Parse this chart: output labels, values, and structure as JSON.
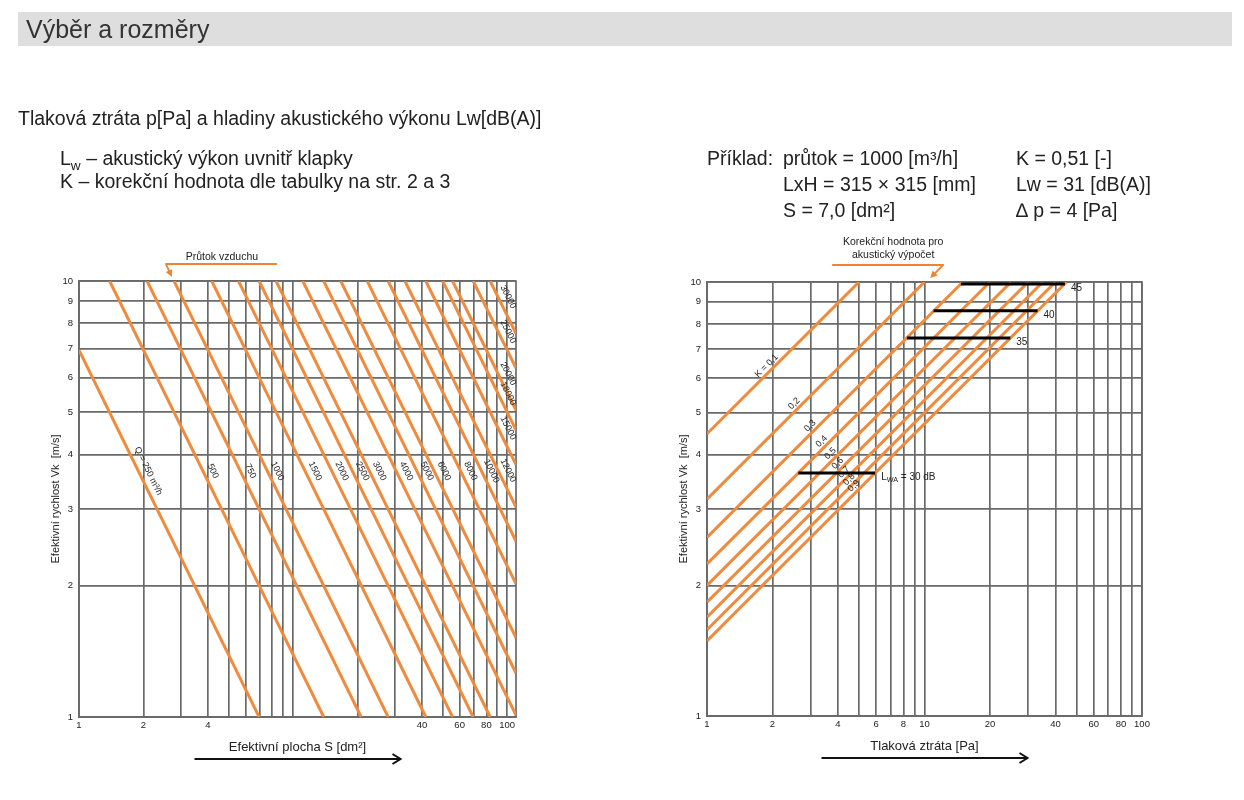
{
  "chart_data": [
    {
      "type": "other",
      "title": "Výběr a rozměry",
      "subtitle": "Tlaková ztráta p[Pa] a hladiny akustického výkonu Lw[dB(A)]",
      "annotations": [
        "L$_{w}$ – akustický výkon uvnitř klapky",
        "K – korekční hodnota dle tabulky na str. 2 a 3",
        "Příklad:",
        "průtok = 1000 [m³/h]",
        "LxH = 315 × 315 [mm]",
        "S = 7,0 [dm²]",
        "K = 0,51 [-]",
        "Lw = 31 [dB(A)]",
        "∆ p = 4 [Pa]"
      ]
    },
    {
      "type": "line",
      "xlabel": "Efektivní plocha S [dm²]",
      "ylabel": "Efektivní rychlost Vk  [m/s]",
      "annotations": [
        "Průtok vzduchu"
      ],
      "log": "xy",
      "grid": true,
      "marker": "none",
      "xlim": [
        1,
        110
      ],
      "ylim": [
        1,
        10
      ],
      "xticks": [
        1,
        2,
        {
          "value": 3,
          "label": null
        },
        4,
        {
          "value": 5,
          "label": null
        },
        {
          "value": 6,
          "label": null
        },
        {
          "value": 7,
          "label": null
        },
        {
          "value": 8,
          "label": null
        },
        {
          "value": 9,
          "label": null
        },
        {
          "value": 10,
          "label": null
        },
        {
          "value": 20,
          "label": null
        },
        {
          "value": 30,
          "label": null
        },
        40,
        {
          "value": 50,
          "label": null
        },
        60,
        {
          "value": 70,
          "label": null
        },
        80,
        {
          "value": 90,
          "label": null
        },
        100
      ],
      "yticks": [
        1,
        2,
        3,
        4,
        5,
        6,
        7,
        8,
        9,
        10
      ],
      "series": [
        {
          "name": "Q = 250 m³/h",
          "color": "#f08a3c",
          "x": [
            1,
            6.94
          ],
          "values": [
            6.94,
            1
          ]
        },
        {
          "name": "500",
          "color": "#f08a3c",
          "x": [
            1.39,
            13.9
          ],
          "values": [
            10,
            1
          ]
        },
        {
          "name": "750",
          "color": "#f08a3c",
          "x": [
            2.08,
            20.8
          ],
          "values": [
            10,
            1
          ]
        },
        {
          "name": "1000",
          "color": "#f08a3c",
          "x": [
            2.78,
            27.8
          ],
          "values": [
            10,
            1
          ]
        },
        {
          "name": "1500",
          "color": "#f08a3c",
          "x": [
            4.17,
            41.7
          ],
          "values": [
            10,
            1
          ]
        },
        {
          "name": "2000",
          "color": "#f08a3c",
          "x": [
            5.56,
            55.6
          ],
          "values": [
            10,
            1
          ]
        },
        {
          "name": "2500",
          "color": "#f08a3c",
          "x": [
            6.94,
            69.4
          ],
          "values": [
            10,
            1
          ]
        },
        {
          "name": "3000",
          "color": "#f08a3c",
          "x": [
            8.33,
            83.3
          ],
          "values": [
            10,
            1
          ]
        },
        {
          "name": "4000",
          "color": "#f08a3c",
          "x": [
            11.1,
            110
          ],
          "values": [
            10,
            1.01
          ]
        },
        {
          "name": "5000",
          "color": "#f08a3c",
          "x": [
            13.9,
            110
          ],
          "values": [
            10,
            1.26
          ]
        },
        {
          "name": "6000",
          "color": "#f08a3c",
          "x": [
            16.7,
            110
          ],
          "values": [
            10,
            1.52
          ]
        },
        {
          "name": "8000",
          "color": "#f08a3c",
          "x": [
            22.2,
            110
          ],
          "values": [
            10,
            2.02
          ]
        },
        {
          "name": "10000",
          "color": "#f08a3c",
          "x": [
            27.8,
            110
          ],
          "values": [
            10,
            2.53
          ]
        },
        {
          "name": "12000",
          "color": "#f08a3c",
          "x": [
            33.3,
            110
          ],
          "values": [
            10,
            3.03
          ]
        },
        {
          "name": "15000",
          "color": "#f08a3c",
          "x": [
            41.7,
            110
          ],
          "values": [
            10,
            3.79
          ]
        },
        {
          "name": "18000",
          "color": "#f08a3c",
          "x": [
            50,
            110
          ],
          "values": [
            10,
            4.55
          ]
        },
        {
          "name": "20000",
          "color": "#f08a3c",
          "x": [
            55.6,
            110
          ],
          "values": [
            10,
            5.05
          ]
        },
        {
          "name": "25000",
          "color": "#f08a3c",
          "x": [
            69.4,
            110
          ],
          "values": [
            10,
            6.31
          ]
        },
        {
          "name": "30000",
          "color": "#f08a3c",
          "x": [
            83.3,
            110
          ],
          "values": [
            10,
            7.58
          ]
        }
      ]
    },
    {
      "type": "line",
      "xlabel": "Tlaková ztráta [Pa]",
      "ylabel": "Efektivní rychlost Vk  [m/s]",
      "annotations": [
        "Korekční hodnota pro akustický výpočet"
      ],
      "log": "xy",
      "grid": true,
      "marker": "none",
      "xlim": [
        1,
        100
      ],
      "ylim": [
        1,
        10
      ],
      "xticks": [
        1,
        2,
        {
          "value": 3,
          "label": null
        },
        4,
        {
          "value": 5,
          "label": null
        },
        6,
        {
          "value": 7,
          "label": null
        },
        8,
        {
          "value": 9,
          "label": null
        },
        10,
        20,
        {
          "value": 30,
          "label": null
        },
        40,
        {
          "value": 50,
          "label": null
        },
        60,
        {
          "value": 70,
          "label": null
        },
        80,
        {
          "value": 90,
          "label": null
        },
        100
      ],
      "yticks": [
        1,
        2,
        3,
        4,
        5,
        6,
        7,
        8,
        9,
        10
      ],
      "series": [
        {
          "name": "K = 0,1",
          "color": "#f08a3c",
          "x": [
            1,
            5
          ],
          "values": [
            4.47,
            10
          ]
        },
        {
          "name": "0,2",
          "color": "#f08a3c",
          "x": [
            1,
            10
          ],
          "values": [
            3.16,
            10
          ]
        },
        {
          "name": "0,3",
          "color": "#f08a3c",
          "x": [
            1,
            15
          ],
          "values": [
            2.58,
            10
          ]
        },
        {
          "name": "0,4",
          "color": "#f08a3c",
          "x": [
            1,
            20
          ],
          "values": [
            2.24,
            10
          ]
        },
        {
          "name": "0,5",
          "color": "#f08a3c",
          "x": [
            1,
            25
          ],
          "values": [
            2,
            10
          ]
        },
        {
          "name": "0,6",
          "color": "#f08a3c",
          "x": [
            1,
            30
          ],
          "values": [
            1.83,
            10
          ]
        },
        {
          "name": "0,7",
          "color": "#f08a3c",
          "x": [
            1,
            35
          ],
          "values": [
            1.69,
            10
          ]
        },
        {
          "name": "0,8",
          "color": "#f08a3c",
          "x": [
            1,
            40
          ],
          "values": [
            1.58,
            10
          ]
        },
        {
          "name": "0,9",
          "color": "#f08a3c",
          "x": [
            1,
            45
          ],
          "values": [
            1.49,
            10
          ]
        },
        {
          "name": "L$_{WA}$ = 30 dB",
          "color": "#000000",
          "x": [
            2.63,
            5.93
          ],
          "values": [
            3.63,
            3.63
          ]
        },
        {
          "name": "35",
          "color": "#000000",
          "x": [
            8.3,
            24.8
          ],
          "values": [
            7.43,
            7.43
          ]
        },
        {
          "name": "40",
          "color": "#000000",
          "x": [
            11,
            33.1
          ],
          "values": [
            8.58,
            8.58
          ]
        },
        {
          "name": "45",
          "color": "#000000",
          "x": [
            14.7,
            44.2
          ],
          "values": [
            9.9,
            9.9
          ]
        }
      ]
    }
  ]
}
